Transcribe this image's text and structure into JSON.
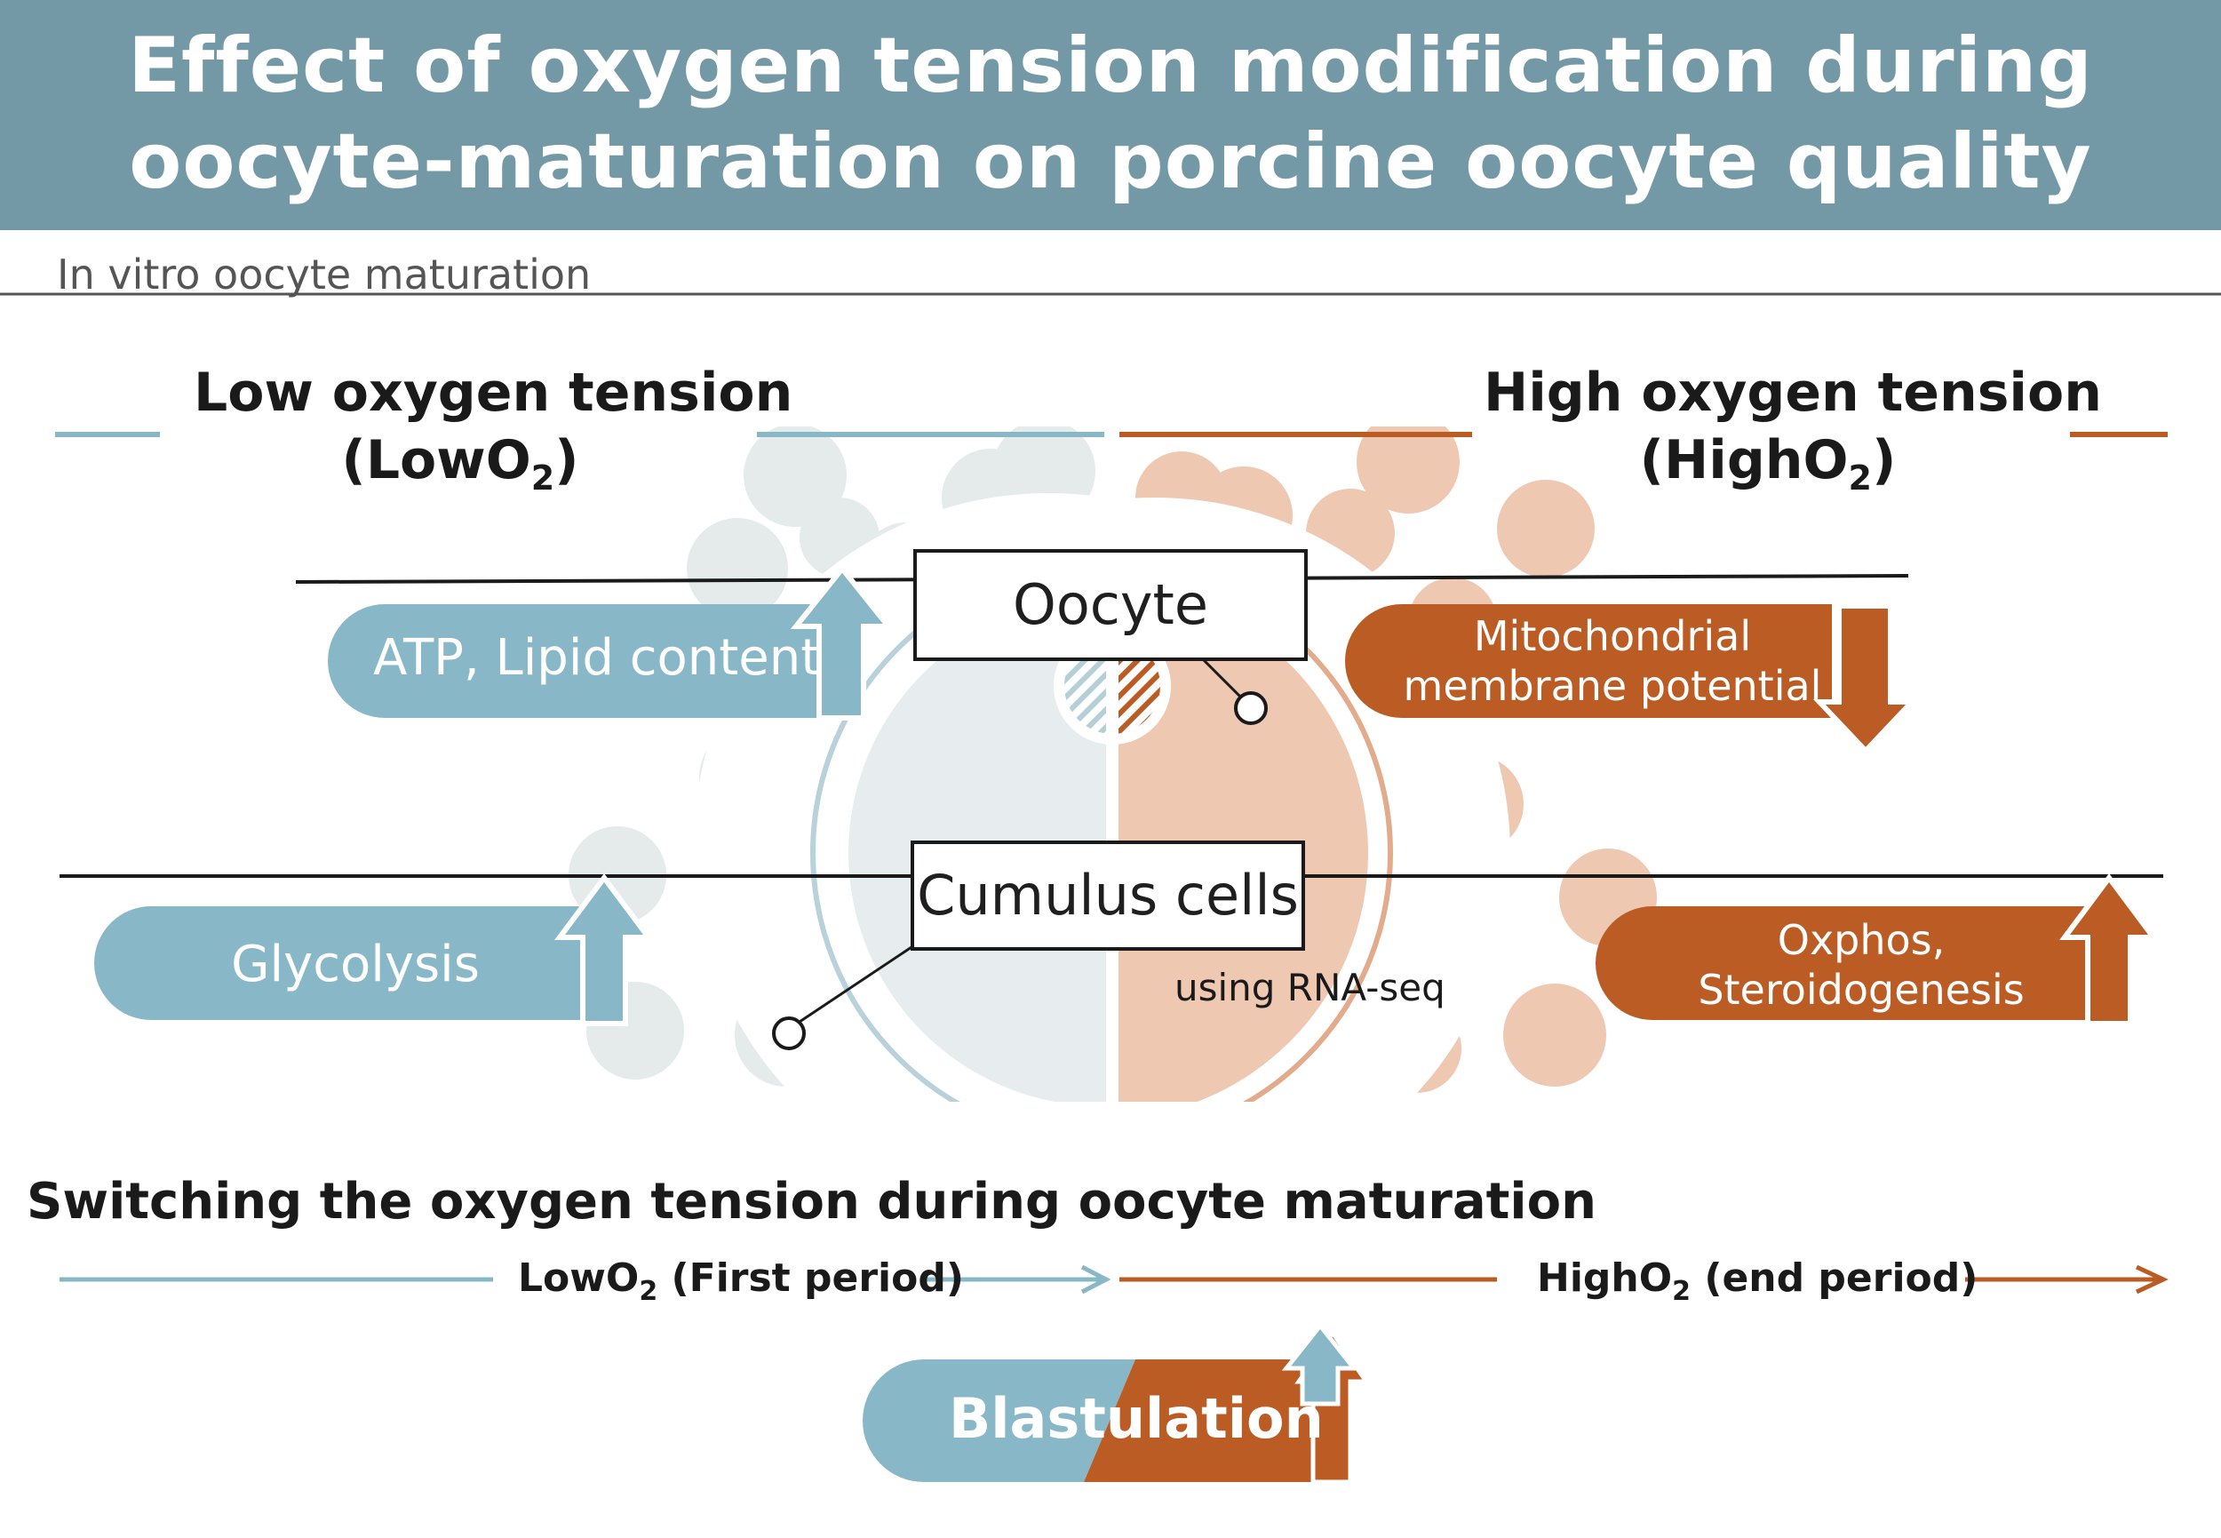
{
  "header": {
    "title_line1": "Effect of oxygen tension modification during",
    "title_line2": "oocyte-maturation on porcine oocyte quality"
  },
  "section_label": "In vitro oocyte maturation",
  "low": {
    "title_line1": "Low oxygen tension",
    "title_open": "(LowO",
    "title_sub": "2",
    "title_close": ")",
    "color": "#88b8c8"
  },
  "high": {
    "title_line1": "High oxygen tension",
    "title_open": "(HighO",
    "title_sub": "2",
    "title_close": ")",
    "color": "#bb5c24"
  },
  "labels": {
    "oocyte": "Oocyte",
    "cumulus": "Cumulus cells",
    "rna_seq": "using RNA-seq"
  },
  "effects": {
    "atp": {
      "text": "ATP, Lipid content",
      "direction": "up"
    },
    "mito_line1": "Mitochondrial",
    "mito_line2": "membrane potential",
    "mito_direction": "down",
    "glycolysis": {
      "text": "Glycolysis",
      "direction": "up"
    },
    "oxphos_line1": "Oxphos,",
    "oxphos_line2": "Steroidogenesis",
    "oxphos_direction": "up"
  },
  "switching": {
    "title": "Switching the oxygen tension during oocyte maturation",
    "low_open": "LowO",
    "low_sub": "2",
    "low_rest": " (First period)",
    "high_open": "HighO",
    "high_sub": "2",
    "high_rest": " (end period)",
    "blastulation": "Blastulation",
    "blast_direction": "up"
  }
}
